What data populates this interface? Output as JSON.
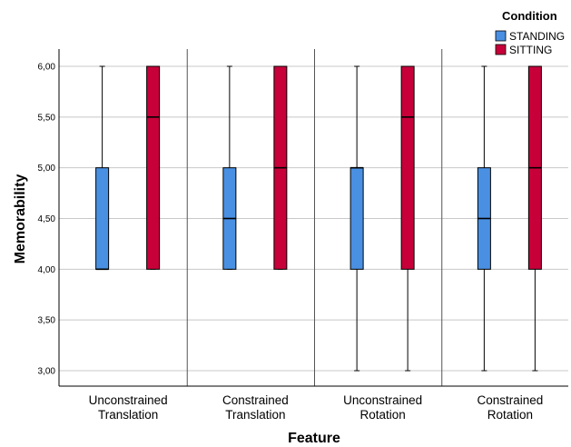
{
  "chart_data": {
    "type": "boxplot",
    "xlabel": "Feature",
    "ylabel": "Memorability",
    "ylim": [
      2.8,
      6.3
    ],
    "yticks": [
      "6,00",
      "5,50",
      "5,00",
      "4,50",
      "4,00",
      "3,50",
      "3,00"
    ],
    "ytick_values": [
      6.0,
      5.5,
      5.0,
      4.5,
      4.0,
      3.5,
      3.0
    ],
    "grid": true,
    "legend": {
      "title": "Condition",
      "placement": "top-right"
    },
    "categories": [
      [
        "Unconstrained",
        "Translation"
      ],
      [
        "Constrained",
        "Translation"
      ],
      [
        "Unconstrained",
        "Rotation"
      ],
      [
        "Constrained",
        "Rotation"
      ]
    ],
    "series": [
      {
        "name": "STANDING",
        "color": "#4a90e2",
        "boxes": [
          {
            "min": 4.0,
            "q1": 4.0,
            "median": 4.0,
            "q3": 5.0,
            "max": 6.0
          },
          {
            "min": 4.0,
            "q1": 4.0,
            "median": 4.5,
            "q3": 5.0,
            "max": 6.0
          },
          {
            "min": 3.0,
            "q1": 4.0,
            "median": 5.0,
            "q3": 5.0,
            "max": 6.0
          },
          {
            "min": 3.0,
            "q1": 4.0,
            "median": 4.5,
            "q3": 5.0,
            "max": 6.0
          }
        ]
      },
      {
        "name": "SITTING",
        "color": "#c8003a",
        "boxes": [
          {
            "min": 4.0,
            "q1": 4.0,
            "median": 5.5,
            "q3": 6.0,
            "max": 6.0
          },
          {
            "min": 4.0,
            "q1": 4.0,
            "median": 5.0,
            "q3": 6.0,
            "max": 6.0
          },
          {
            "min": 3.0,
            "q1": 4.0,
            "median": 5.5,
            "q3": 6.0,
            "max": 6.0
          },
          {
            "min": 3.0,
            "q1": 4.0,
            "median": 5.0,
            "q3": 6.0,
            "max": 6.0
          }
        ]
      }
    ]
  }
}
